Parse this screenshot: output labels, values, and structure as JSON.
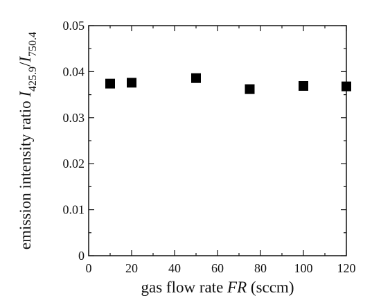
{
  "chart_data": {
    "type": "scatter",
    "xlabel_prefix": "gas flow rate ",
    "xlabel_var": "FR",
    "xlabel_unit": " (sccm)",
    "ylabel_prefix": "emission intensity ratio ",
    "ylabel_I": "I",
    "ylabel_sub1": "425.9",
    "ylabel_slash": "/",
    "ylabel_sub2": "750.4",
    "xlim": [
      0,
      120
    ],
    "ylim": [
      0,
      0.05
    ],
    "x_ticks": [
      "0",
      "20",
      "40",
      "60",
      "80",
      "100",
      "120"
    ],
    "y_ticks": [
      "0",
      "0.01",
      "0.02",
      "0.03",
      "0.04",
      "0.05"
    ],
    "x_tick_values": [
      0,
      20,
      40,
      60,
      80,
      100,
      120
    ],
    "y_tick_values": [
      0,
      0.01,
      0.02,
      0.03,
      0.04,
      0.05
    ],
    "grid": false,
    "marker": "square",
    "marker_color": "#000000",
    "x": [
      10,
      20,
      50,
      75,
      100,
      120
    ],
    "y": [
      0.0374,
      0.0376,
      0.0386,
      0.0362,
      0.0369,
      0.0368
    ]
  }
}
